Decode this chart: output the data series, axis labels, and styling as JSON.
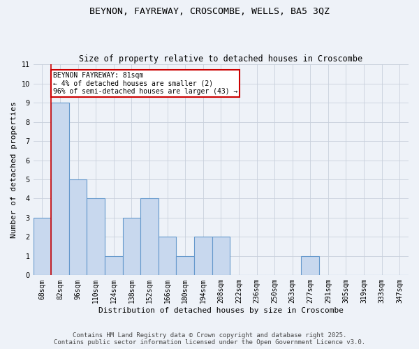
{
  "title1": "BEYNON, FAYREWAY, CROSCOMBE, WELLS, BA5 3QZ",
  "title2": "Size of property relative to detached houses in Croscombe",
  "xlabel": "Distribution of detached houses by size in Croscombe",
  "ylabel": "Number of detached properties",
  "categories": [
    "68sqm",
    "82sqm",
    "96sqm",
    "110sqm",
    "124sqm",
    "138sqm",
    "152sqm",
    "166sqm",
    "180sqm",
    "194sqm",
    "208sqm",
    "222sqm",
    "236sqm",
    "250sqm",
    "263sqm",
    "277sqm",
    "291sqm",
    "305sqm",
    "319sqm",
    "333sqm",
    "347sqm"
  ],
  "values": [
    3,
    9,
    5,
    4,
    1,
    3,
    4,
    2,
    1,
    2,
    2,
    0,
    0,
    0,
    0,
    1,
    0,
    0,
    0,
    0,
    0
  ],
  "bar_color": "#c8d8ee",
  "bar_edge_color": "#6699cc",
  "property_line_x": 0.5,
  "annotation_text": "BEYNON FAYREWAY: 81sqm\n← 4% of detached houses are smaller (2)\n96% of semi-detached houses are larger (43) →",
  "annotation_box_color": "#ffffff",
  "annotation_border_color": "#cc0000",
  "property_line_color": "#cc0000",
  "ylim": [
    0,
    11
  ],
  "yticks": [
    0,
    1,
    2,
    3,
    4,
    5,
    6,
    7,
    8,
    9,
    10,
    11
  ],
  "footer1": "Contains HM Land Registry data © Crown copyright and database right 2025.",
  "footer2": "Contains public sector information licensed under the Open Government Licence v3.0.",
  "background_color": "#eef2f8",
  "plot_bg_color": "#eef2f8",
  "grid_color": "#c8d0dc",
  "title1_fontsize": 9.5,
  "title2_fontsize": 8.5,
  "xlabel_fontsize": 8,
  "ylabel_fontsize": 8,
  "tick_fontsize": 7,
  "annotation_fontsize": 7,
  "footer_fontsize": 6.5
}
